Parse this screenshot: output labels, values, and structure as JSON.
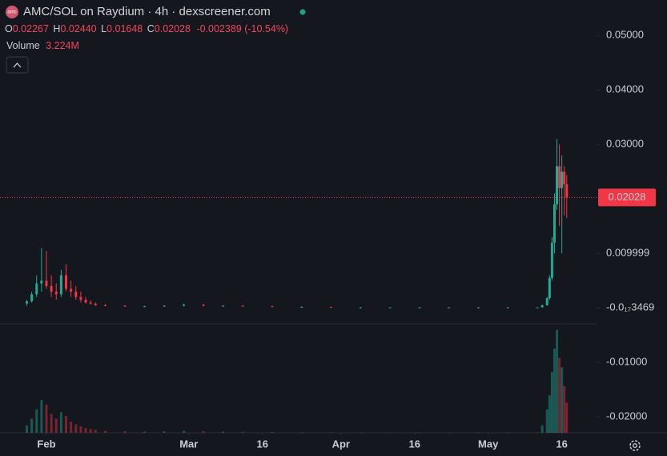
{
  "chart_data": {
    "type": "candlestick",
    "title": "AMC/SOL on Raydium · 4h · dexscreener.com",
    "logo_text": "amc",
    "ohlc_keys": [
      "O",
      "H",
      "L",
      "C"
    ],
    "ohlc_labels": [
      "0.02267",
      "0.02440",
      "0.01648",
      "0.02028"
    ],
    "change_label": "-0.002389 (-10.54%)",
    "volume_key": "Volume",
    "volume_label": "3.224M",
    "last_price_label": "0.02028",
    "up_color": "#22ab94",
    "down_color": "#f23645",
    "x": [
      -4,
      -3,
      -2,
      -1,
      0,
      1,
      2,
      3,
      4,
      5,
      6,
      7,
      8,
      9,
      10,
      12,
      16,
      20,
      24,
      28,
      32,
      36,
      40,
      46,
      52,
      58,
      64,
      70,
      76,
      82,
      88,
      94,
      100,
      101,
      102,
      102.5,
      103,
      103.5,
      104,
      104.5,
      105,
      105.5,
      106
    ],
    "open": [
      0.0008,
      0.0012,
      0.0025,
      0.0045,
      0.005,
      0.004,
      0.003,
      0.0025,
      0.006,
      0.0035,
      0.003,
      0.002,
      0.0015,
      0.001,
      0.0008,
      0.0005,
      0.0004,
      0.0003,
      0.0003,
      0.0004,
      0.0006,
      0.0004,
      0.0004,
      0.0003,
      0.0002,
      0.0002,
      0.0001,
      0.0001,
      0.0001,
      0.0001,
      0.0001,
      0.0001,
      0.0001,
      0.0001,
      0.0005,
      0.0018,
      0.0055,
      0.012,
      0.019,
      0.026,
      0.022,
      0.025,
      0.02267
    ],
    "high": [
      0.0015,
      0.003,
      0.006,
      0.011,
      0.0105,
      0.006,
      0.0045,
      0.007,
      0.008,
      0.005,
      0.004,
      0.003,
      0.002,
      0.0014,
      0.001,
      0.0007,
      0.0005,
      0.0004,
      0.0005,
      0.0008,
      0.0007,
      0.0005,
      0.0005,
      0.0004,
      0.0003,
      0.0002,
      0.00015,
      0.00015,
      0.00015,
      0.00015,
      0.00015,
      0.00015,
      0.00015,
      0.0006,
      0.002,
      0.006,
      0.013,
      0.021,
      0.031,
      0.03,
      0.028,
      0.026,
      0.0244
    ],
    "low": [
      0.0004,
      0.001,
      0.002,
      0.003,
      0.0035,
      0.002,
      0.0015,
      0.002,
      0.003,
      0.002,
      0.0015,
      0.001,
      0.0008,
      0.0006,
      0.0004,
      0.0003,
      0.0002,
      0.0002,
      0.0002,
      0.0003,
      0.0003,
      0.0003,
      0.0003,
      0.0002,
      0.0001,
      0.0001,
      5e-05,
      5e-05,
      5e-05,
      5e-05,
      5e-05,
      5e-05,
      5e-05,
      0.0001,
      0.0004,
      0.0015,
      0.005,
      0.01,
      0.018,
      0.015,
      0.01,
      0.017,
      0.01648
    ],
    "close": [
      0.0012,
      0.0025,
      0.0045,
      0.005,
      0.004,
      0.003,
      0.0025,
      0.006,
      0.0035,
      0.003,
      0.002,
      0.0015,
      0.001,
      0.0008,
      0.0005,
      0.0004,
      0.0003,
      0.0003,
      0.0004,
      0.0006,
      0.0004,
      0.0004,
      0.0003,
      0.0002,
      0.0002,
      0.0001,
      0.0001,
      0.0001,
      0.0001,
      0.0001,
      0.0001,
      0.0001,
      0.0001,
      0.0005,
      0.0018,
      0.0055,
      0.012,
      0.019,
      0.026,
      0.022,
      0.025,
      0.0227,
      0.02028
    ],
    "volume": [
      800000,
      1500000,
      2500000,
      3500000,
      3000000,
      2000000,
      1500000,
      2200000,
      1800000,
      1200000,
      900000,
      700000,
      500000,
      400000,
      300000,
      200000,
      150000,
      120000,
      150000,
      200000,
      150000,
      120000,
      100000,
      80000,
      60000,
      50000,
      40000,
      40000,
      40000,
      40000,
      40000,
      40000,
      40000,
      800000,
      2500000,
      4000000,
      6500000,
      9000000,
      11000000,
      8000000,
      7000000,
      5000000,
      3224000
    ],
    "volume_lim": [
      0,
      12000000
    ],
    "xlim": [
      -9.46,
      112.07
    ],
    "xticks": [
      {
        "value": 0,
        "label": "Feb"
      },
      {
        "value": 29,
        "label": "Mar"
      },
      {
        "value": 44,
        "label": "16"
      },
      {
        "value": 60,
        "label": "Apr"
      },
      {
        "value": 75,
        "label": "16"
      },
      {
        "value": 90,
        "label": "May"
      },
      {
        "value": 105,
        "label": "16"
      }
    ],
    "ylim": [
      -0.0229,
      0.0565
    ],
    "yticks": [
      {
        "value": 0.05,
        "label": "0.05000"
      },
      {
        "value": 0.04,
        "label": "0.04000"
      },
      {
        "value": 0.03,
        "label": "0.03000"
      },
      0.009999,
      {
        "value": -3.469e-21,
        "label": "-0.0₁₇3469"
      },
      {
        "value": -0.01,
        "label": "-0.01000"
      },
      {
        "value": -0.02,
        "label": "-0.02000"
      }
    ]
  }
}
